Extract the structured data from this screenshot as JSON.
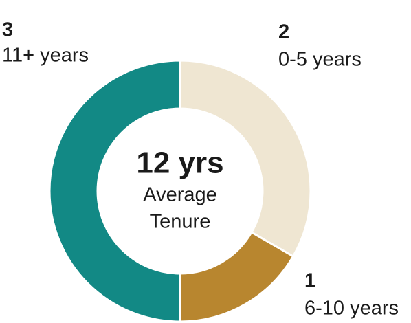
{
  "chart_data": {
    "type": "donut",
    "categories": [
      "0-5 years",
      "6-10 years",
      "11+ years"
    ],
    "values": [
      2,
      1,
      3
    ],
    "colors": [
      "#efe6d2",
      "#b8862f",
      "#128985"
    ],
    "center_title": "12 yrs",
    "center_subtitle": [
      "Average",
      "Tenure"
    ]
  }
}
